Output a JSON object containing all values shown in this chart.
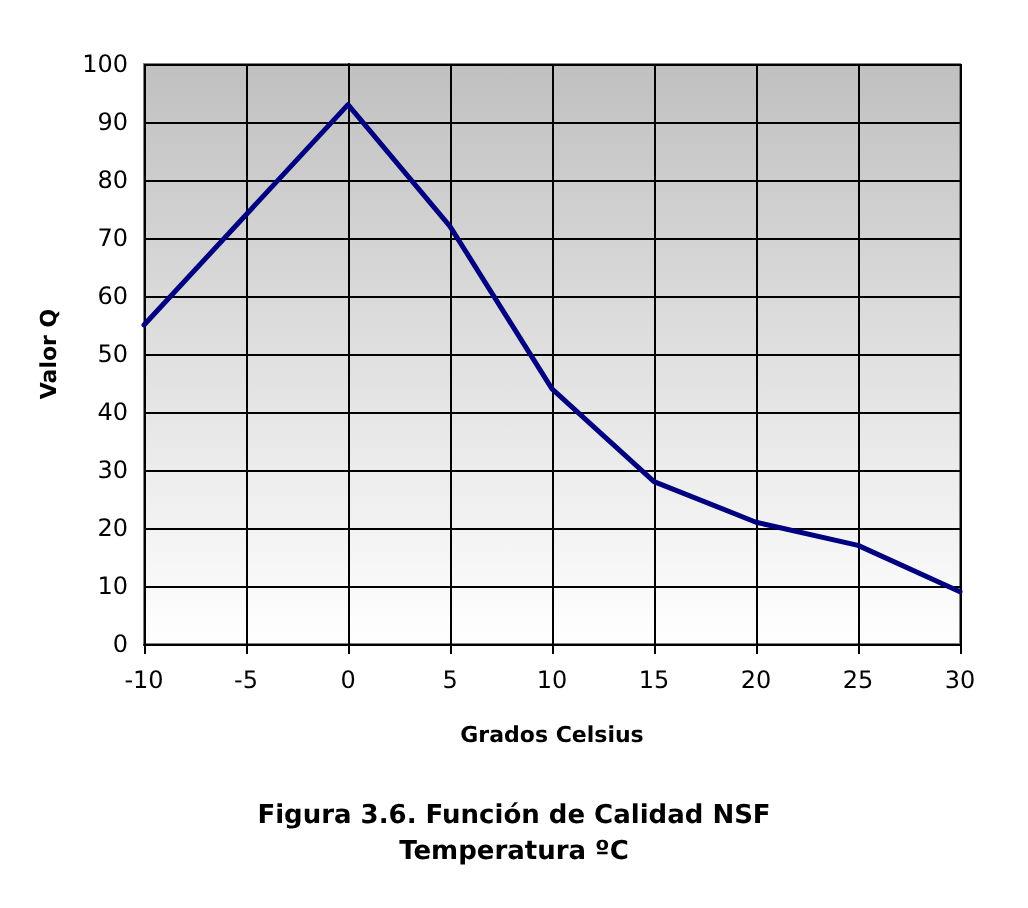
{
  "chart_data": {
    "type": "line",
    "title": "Figura 3.6. Función de Calidad NSF\nTemperatura ºC",
    "xlabel": "Grados Celsius",
    "ylabel": "Valor Q",
    "x": [
      -10,
      0,
      5,
      10,
      15,
      20,
      25,
      30
    ],
    "series": [
      {
        "color": "#000080",
        "values": [
          55,
          93,
          72,
          44,
          28,
          21,
          17,
          9
        ]
      }
    ],
    "xlim": [
      -10,
      30
    ],
    "xticks": [
      -10,
      -5,
      0,
      5,
      10,
      15,
      20,
      25,
      30
    ],
    "ylim": [
      0,
      100
    ],
    "yticks": [
      0,
      10,
      20,
      30,
      40,
      50,
      60,
      70,
      80,
      90,
      100
    ],
    "grid": true,
    "marker": "none",
    "line_style": "solid"
  }
}
